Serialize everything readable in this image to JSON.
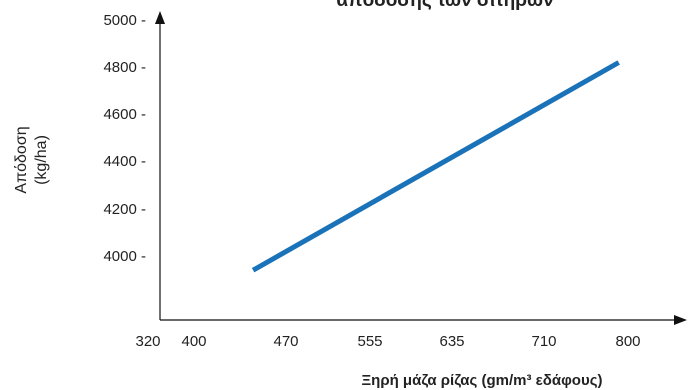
{
  "chart_data": {
    "type": "line",
    "title": "απόδοσης των σιτηρών",
    "xlabel": "Ξηρή μάζα ρίζας (gm/m³ εδάφους)",
    "ylabel_lines": [
      "Απόδοση",
      "(kg/ha)"
    ],
    "x_ticks": [
      "320",
      "400",
      "470",
      "555",
      "635",
      "710",
      "800"
    ],
    "y_ticks": [
      "5000 -",
      "4800 -",
      "4600 -",
      "4400 -",
      "4200 -",
      "4000 -"
    ],
    "ylim": [
      3800,
      5000
    ],
    "grid": false,
    "series": [
      {
        "x": [
          445,
          790
        ],
        "y": [
          3940,
          4820
        ]
      }
    ],
    "colors": {
      "line": "#1a72b8",
      "axis": "#111111"
    }
  }
}
